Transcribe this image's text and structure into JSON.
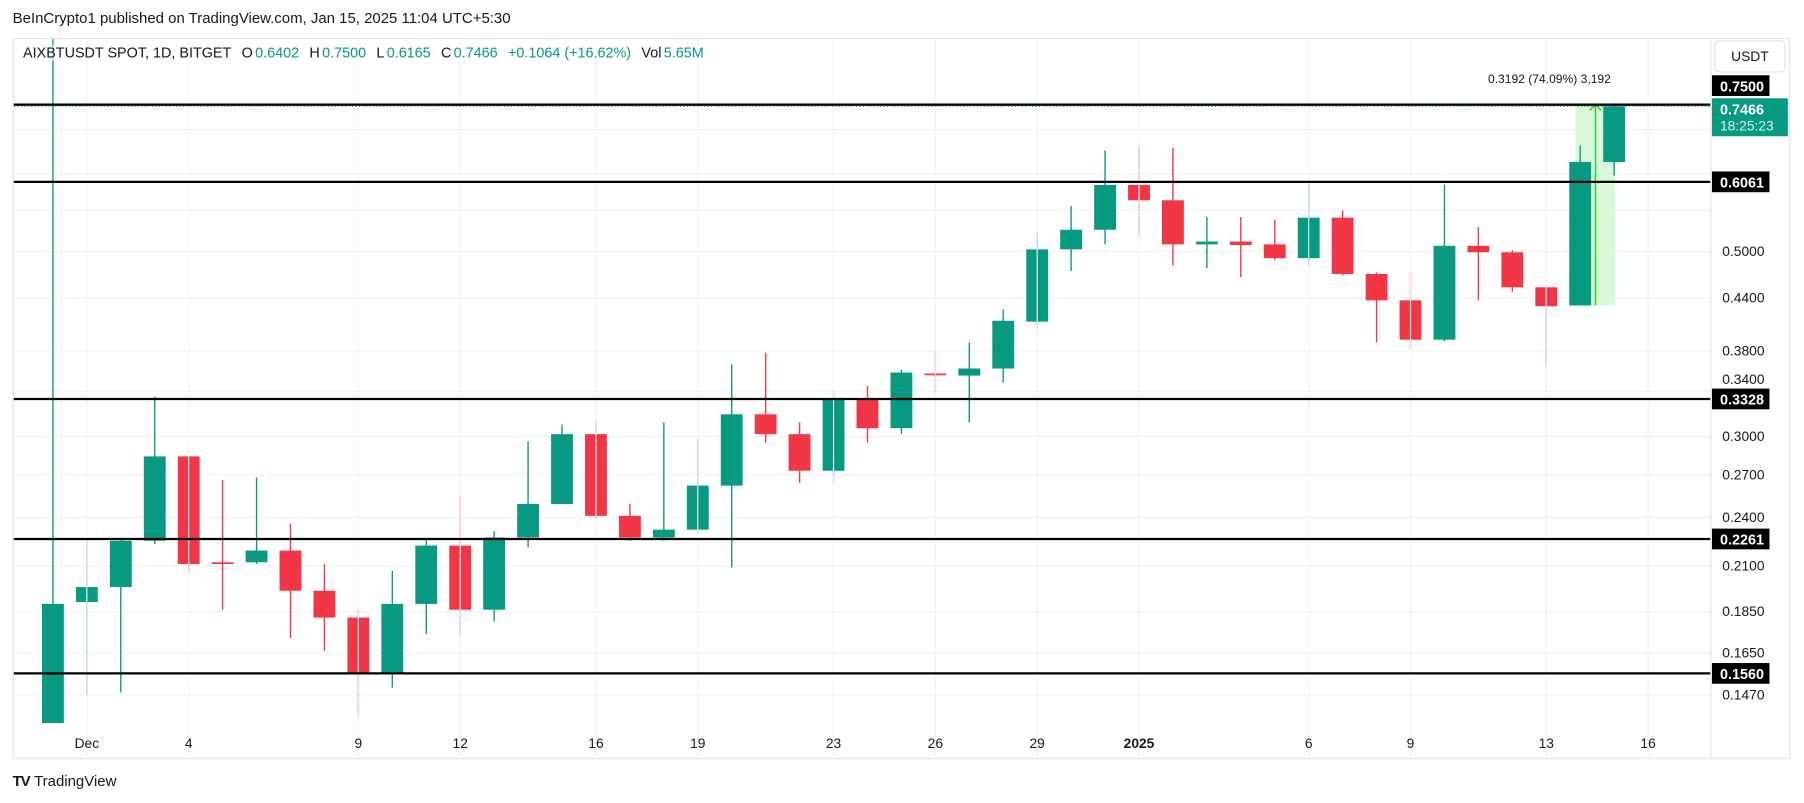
{
  "header": {
    "published": "BeInCrypto1 published on TradingView.com, Jan 15, 2025 11:04 UTC+5:30"
  },
  "legend": {
    "symbol": "AIXBTUSDT SPOT, 1D, BITGET",
    "o_label": "O",
    "o": "0.6402",
    "h_label": "H",
    "h": "0.7500",
    "l_label": "L",
    "l": "0.6165",
    "c_label": "C",
    "c": "0.7466",
    "change": "+0.1064 (+16.62%)",
    "vol_label": "Vol",
    "vol": "5.65M"
  },
  "currency_button": "USDT",
  "footer": {
    "logo_mark": "TV",
    "brand": "TradingView"
  },
  "colors": {
    "up": "#089981",
    "down": "#f23645",
    "level": "#000000",
    "measure_fill": "#ccf5cc",
    "measure_line": "#22cc22"
  },
  "chart_data": {
    "type": "candlestick",
    "title": "",
    "y_scale": "log",
    "ylim": [
      0.133,
      1.0
    ],
    "grid": true,
    "dates": [
      "2024-11-30",
      "2024-12-01",
      "2024-12-02",
      "2024-12-03",
      "2024-12-04",
      "2024-12-05",
      "2024-12-06",
      "2024-12-07",
      "2024-12-08",
      "2024-12-09",
      "2024-12-10",
      "2024-12-11",
      "2024-12-12",
      "2024-12-13",
      "2024-12-14",
      "2024-12-15",
      "2024-12-16",
      "2024-12-17",
      "2024-12-18",
      "2024-12-19",
      "2024-12-20",
      "2024-12-21",
      "2024-12-22",
      "2024-12-23",
      "2024-12-24",
      "2024-12-25",
      "2024-12-26",
      "2024-12-27",
      "2024-12-28",
      "2024-12-29",
      "2024-12-30",
      "2024-12-31",
      "2025-01-01",
      "2025-01-02",
      "2025-01-03",
      "2025-01-04",
      "2025-01-05",
      "2025-01-06",
      "2025-01-07",
      "2025-01-08",
      "2025-01-09",
      "2025-01-10",
      "2025-01-11",
      "2025-01-12",
      "2025-01-13",
      "2025-01-14",
      "2025-01-15"
    ],
    "ohlc": [
      [
        0.136,
        0.98,
        0.136,
        0.189
      ],
      [
        0.19,
        0.226,
        0.147,
        0.198
      ],
      [
        0.198,
        0.226,
        0.148,
        0.225
      ],
      [
        0.225,
        0.335,
        0.223,
        0.284
      ],
      [
        0.284,
        0.285,
        0.206,
        0.211
      ],
      [
        0.212,
        0.266,
        0.186,
        0.2115
      ],
      [
        0.212,
        0.268,
        0.211,
        0.219
      ],
      [
        0.219,
        0.236,
        0.172,
        0.196
      ],
      [
        0.196,
        0.211,
        0.166,
        0.182
      ],
      [
        0.182,
        0.186,
        0.139,
        0.156
      ],
      [
        0.156,
        0.207,
        0.15,
        0.189
      ],
      [
        0.189,
        0.226,
        0.174,
        0.222
      ],
      [
        0.222,
        0.255,
        0.173,
        0.186
      ],
      [
        0.186,
        0.231,
        0.18,
        0.227
      ],
      [
        0.227,
        0.296,
        0.221,
        0.249
      ],
      [
        0.249,
        0.31,
        0.249,
        0.302
      ],
      [
        0.302,
        0.313,
        0.239,
        0.241
      ],
      [
        0.241,
        0.249,
        0.225,
        0.227
      ],
      [
        0.227,
        0.312,
        0.225,
        0.232
      ],
      [
        0.232,
        0.298,
        0.23,
        0.262
      ],
      [
        0.262,
        0.366,
        0.209,
        0.319
      ],
      [
        0.319,
        0.378,
        0.295,
        0.302
      ],
      [
        0.302,
        0.312,
        0.264,
        0.273
      ],
      [
        0.273,
        0.34,
        0.264,
        0.333
      ],
      [
        0.333,
        0.345,
        0.295,
        0.307
      ],
      [
        0.307,
        0.361,
        0.302,
        0.358
      ],
      [
        0.357,
        0.38,
        0.339,
        0.3555
      ],
      [
        0.355,
        0.389,
        0.312,
        0.362
      ],
      [
        0.362,
        0.426,
        0.348,
        0.413
      ],
      [
        0.412,
        0.526,
        0.404,
        0.503
      ],
      [
        0.503,
        0.567,
        0.474,
        0.531
      ],
      [
        0.531,
        0.661,
        0.51,
        0.601
      ],
      [
        0.601,
        0.67,
        0.522,
        0.576
      ],
      [
        0.576,
        0.666,
        0.481,
        0.51
      ],
      [
        0.51,
        0.55,
        0.478,
        0.514
      ],
      [
        0.514,
        0.55,
        0.466,
        0.509
      ],
      [
        0.51,
        0.546,
        0.488,
        0.491
      ],
      [
        0.491,
        0.606,
        0.481,
        0.549
      ],
      [
        0.549,
        0.56,
        0.468,
        0.47
      ],
      [
        0.47,
        0.472,
        0.389,
        0.437
      ],
      [
        0.437,
        0.473,
        0.382,
        0.392
      ],
      [
        0.392,
        0.601,
        0.39,
        0.508
      ],
      [
        0.508,
        0.535,
        0.437,
        0.499
      ],
      [
        0.499,
        0.502,
        0.447,
        0.453
      ],
      [
        0.453,
        0.453,
        0.364,
        0.43
      ],
      [
        0.4308,
        0.67,
        0.4308,
        0.6402
      ],
      [
        0.6402,
        0.75,
        0.6165,
        0.7466
      ]
    ],
    "y_ticks": [
      "0.5000",
      "0.4400",
      "0.3800",
      "0.3400",
      "0.3000",
      "0.2700",
      "0.2400",
      "0.2100",
      "0.1850",
      "0.1650",
      "0.1470"
    ],
    "x_ticks": [
      {
        "label": "Dec",
        "date": "2024-12-01"
      },
      {
        "label": "4",
        "date": "2024-12-04"
      },
      {
        "label": "9",
        "date": "2024-12-09"
      },
      {
        "label": "12",
        "date": "2024-12-12"
      },
      {
        "label": "16",
        "date": "2024-12-16"
      },
      {
        "label": "19",
        "date": "2024-12-19"
      },
      {
        "label": "23",
        "date": "2024-12-23"
      },
      {
        "label": "26",
        "date": "2024-12-26"
      },
      {
        "label": "29",
        "date": "2024-12-29"
      },
      {
        "label": "2025",
        "date": "2025-01-01",
        "bold": true
      },
      {
        "label": "6",
        "date": "2025-01-06"
      },
      {
        "label": "9",
        "date": "2025-01-09"
      },
      {
        "label": "13",
        "date": "2025-01-13"
      },
      {
        "label": "16",
        "date": "2025-01-16"
      }
    ],
    "levels": [
      "0.7500",
      "0.6061",
      "0.3328",
      "0.2261",
      "0.1560"
    ],
    "last_price": {
      "value": "0.7466",
      "countdown": "18:25:23"
    },
    "measure": {
      "from_date": "2025-01-14",
      "to_date": "2025-01-15",
      "low": 0.4308,
      "high": 0.75,
      "label": "0.3192 (74.09%) 3,192"
    }
  }
}
